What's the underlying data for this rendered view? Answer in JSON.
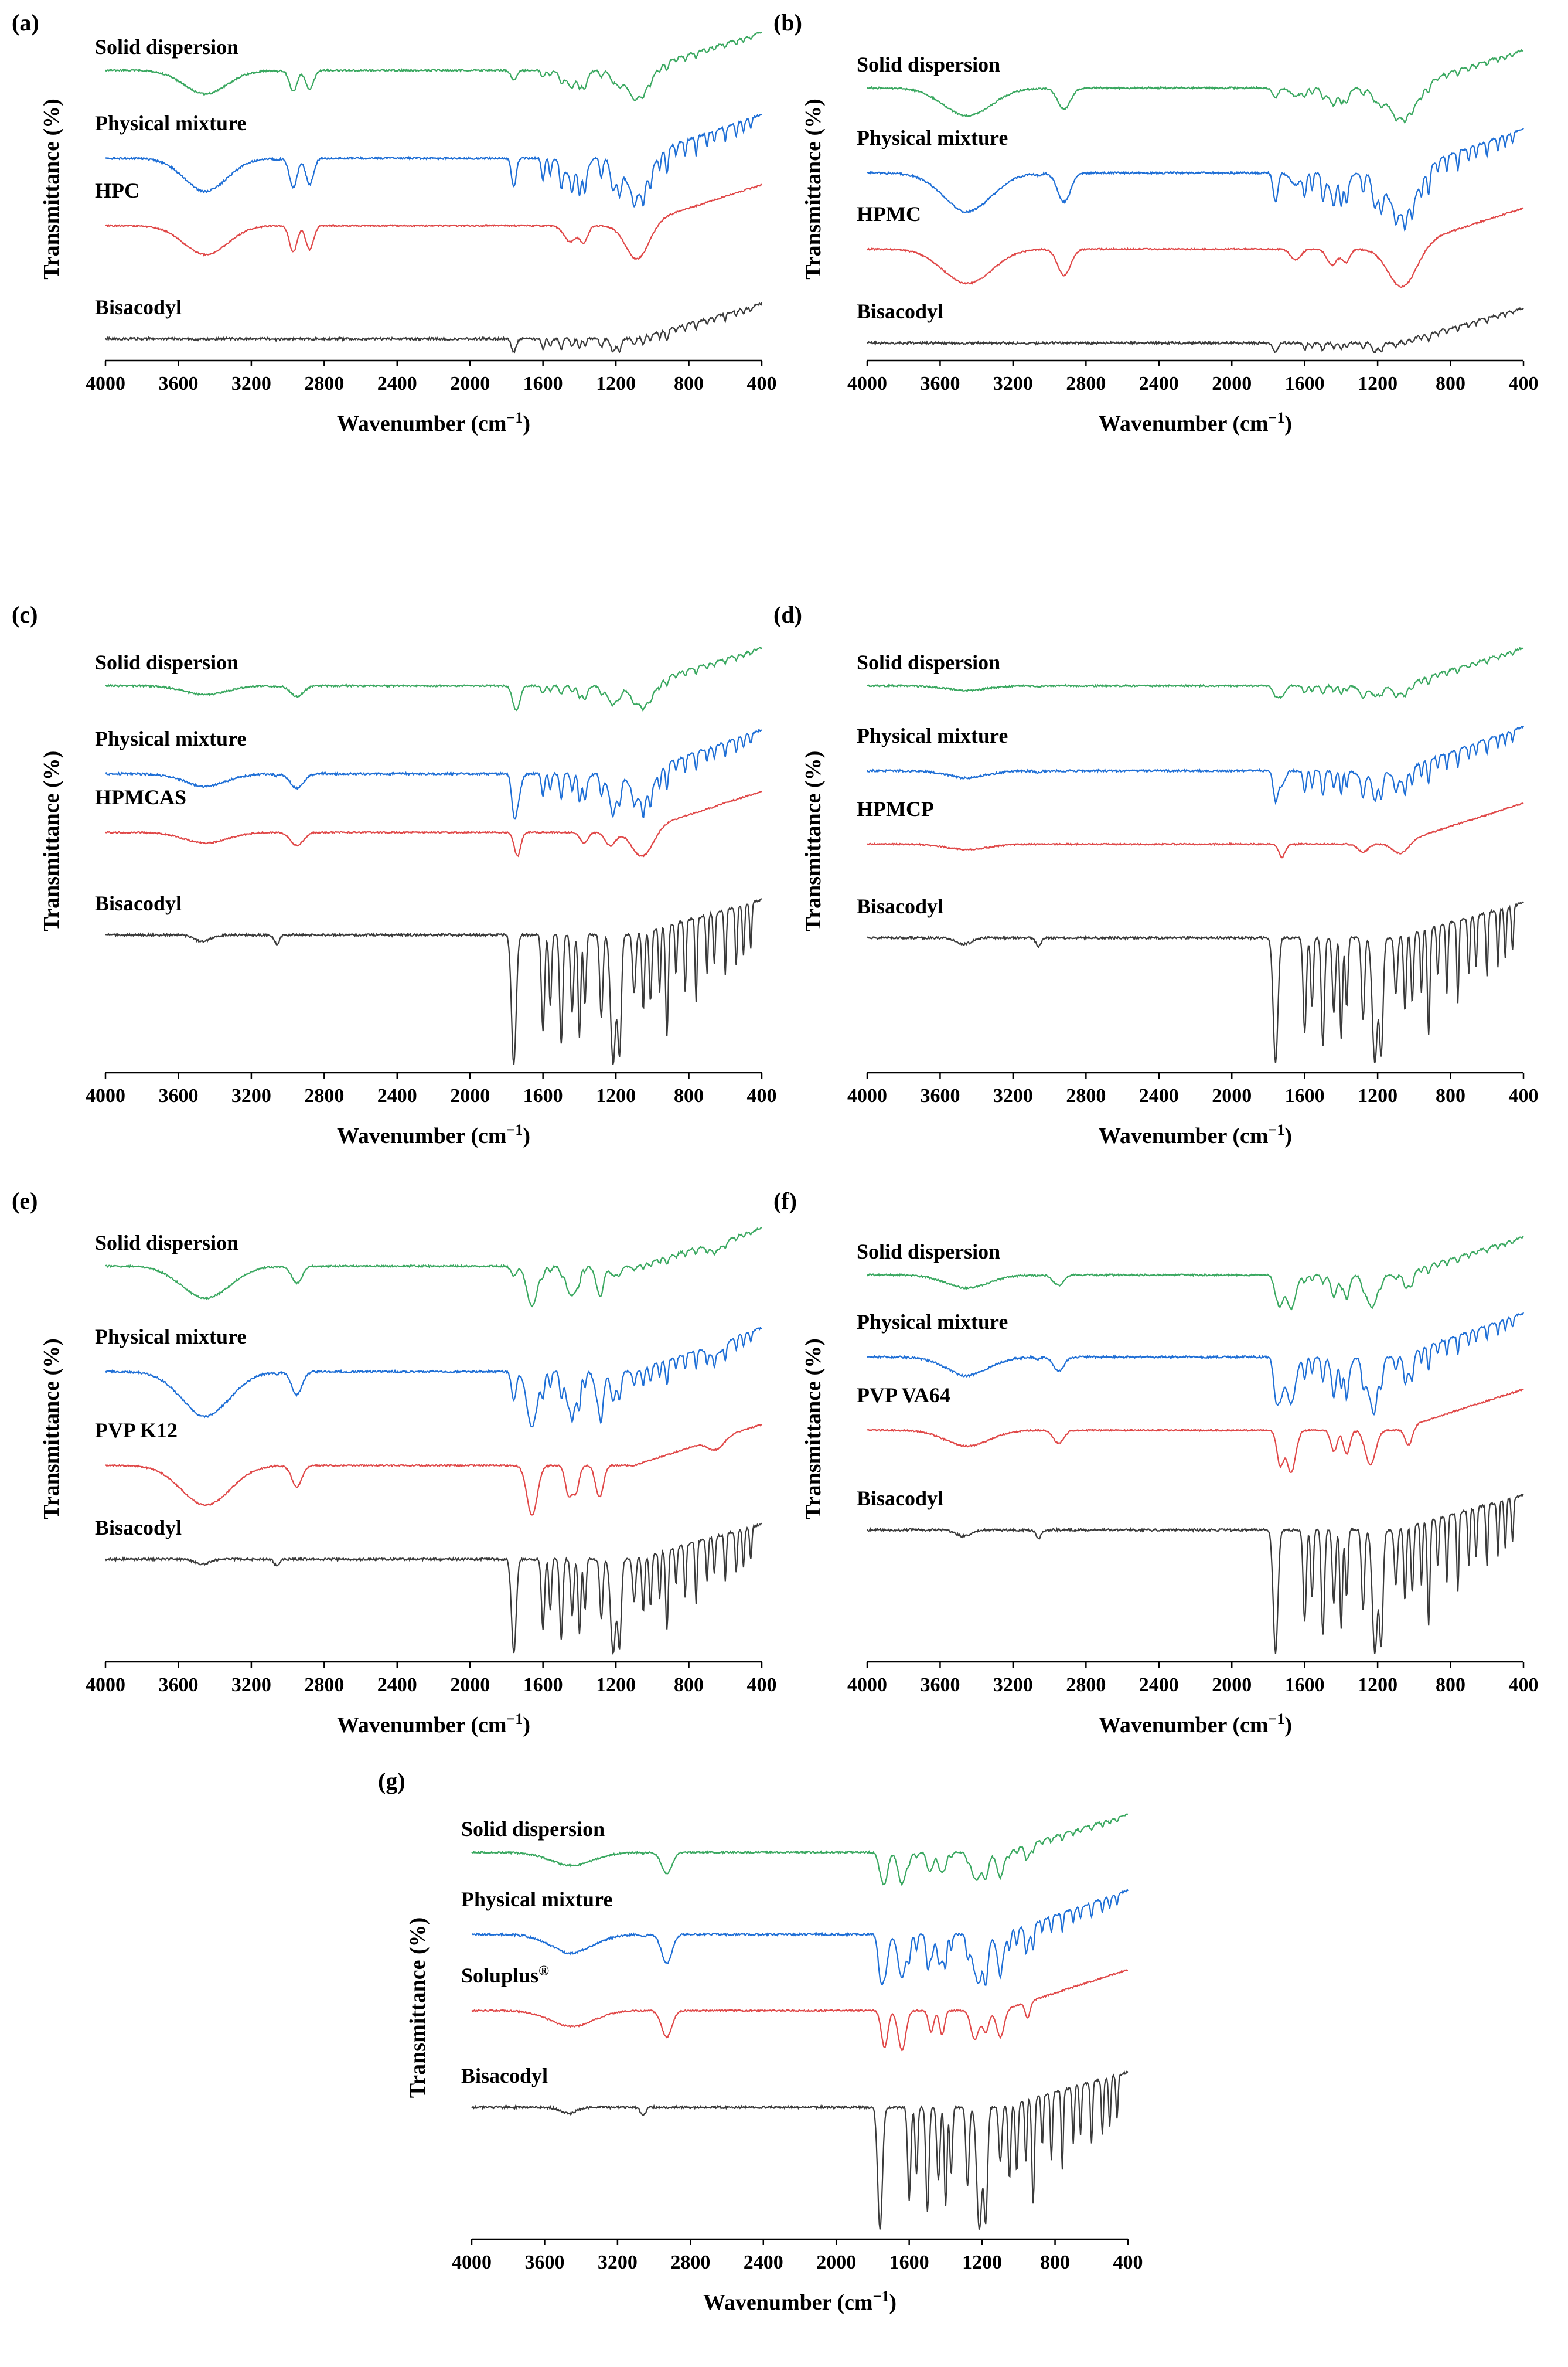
{
  "colors": {
    "solid_dispersion": "#3aa860",
    "physical_mixture": "#1f6fd6",
    "polymer": "#e04848",
    "bisacodyl": "#3a3a3a",
    "axis": "#000000"
  },
  "chart_data": [
    {
      "panel": "(a)",
      "type": "line",
      "polymer": "HPC",
      "xlabel": "Wavenumber (cm",
      "xlabel_sup": "−1",
      "xlabel_end": ")",
      "ylabel": "Transmittance (%)",
      "xlim": [
        4000,
        400
      ],
      "xticks": [
        "4000",
        "3600",
        "3200",
        "2800",
        "2400",
        "2000",
        "1600",
        "1200",
        "800",
        "400"
      ],
      "series": [
        {
          "name": "Solid dispersion",
          "role": "solid_dispersion"
        },
        {
          "name": "Physical mixture",
          "role": "physical_mixture"
        },
        {
          "name": "HPC",
          "role": "polymer"
        },
        {
          "name": "Bisacodyl",
          "role": "bisacodyl"
        }
      ]
    },
    {
      "panel": "(b)",
      "type": "line",
      "polymer": "HPMC",
      "xlabel": "Wavenumber (cm",
      "xlabel_sup": "−1",
      "xlabel_end": ")",
      "ylabel": "Transmittance (%)",
      "xlim": [
        4000,
        400
      ],
      "xticks": [
        "4000",
        "3600",
        "3200",
        "2800",
        "2400",
        "2000",
        "1600",
        "1200",
        "800",
        "400"
      ],
      "series": [
        {
          "name": "Solid dispersion",
          "role": "solid_dispersion"
        },
        {
          "name": "Physical mixture",
          "role": "physical_mixture"
        },
        {
          "name": "HPMC",
          "role": "polymer"
        },
        {
          "name": "Bisacodyl",
          "role": "bisacodyl"
        }
      ]
    },
    {
      "panel": "(c)",
      "type": "line",
      "polymer": "HPMCAS",
      "xlabel": "Wavenumber (cm",
      "xlabel_sup": "−1",
      "xlabel_end": ")",
      "ylabel": "Transmittance (%)",
      "xlim": [
        4000,
        400
      ],
      "xticks": [
        "4000",
        "3600",
        "3200",
        "2800",
        "2400",
        "2000",
        "1600",
        "1200",
        "800",
        "400"
      ],
      "series": [
        {
          "name": "Solid dispersion",
          "role": "solid_dispersion"
        },
        {
          "name": "Physical mixture",
          "role": "physical_mixture"
        },
        {
          "name": "HPMCAS",
          "role": "polymer"
        },
        {
          "name": "Bisacodyl",
          "role": "bisacodyl"
        }
      ]
    },
    {
      "panel": "(d)",
      "type": "line",
      "polymer": "HPMCP",
      "xlabel": "Wavenumber (cm",
      "xlabel_sup": "−1",
      "xlabel_end": ")",
      "ylabel": "Transmittance (%)",
      "xlim": [
        4000,
        400
      ],
      "xticks": [
        "4000",
        "3600",
        "3200",
        "2800",
        "2400",
        "2000",
        "1600",
        "1200",
        "800",
        "400"
      ],
      "series": [
        {
          "name": "Solid dispersion",
          "role": "solid_dispersion"
        },
        {
          "name": "Physical mixture",
          "role": "physical_mixture"
        },
        {
          "name": "HPMCP",
          "role": "polymer"
        },
        {
          "name": "Bisacodyl",
          "role": "bisacodyl"
        }
      ]
    },
    {
      "panel": "(e)",
      "type": "line",
      "polymer": "PVP K12",
      "xlabel": "Wavenumber (cm",
      "xlabel_sup": "−1",
      "xlabel_end": ")",
      "ylabel": "Transmittance (%)",
      "xlim": [
        4000,
        400
      ],
      "xticks": [
        "4000",
        "3600",
        "3200",
        "2800",
        "2400",
        "2000",
        "1600",
        "1200",
        "800",
        "400"
      ],
      "series": [
        {
          "name": "Solid dispersion",
          "role": "solid_dispersion"
        },
        {
          "name": "Physical mixture",
          "role": "physical_mixture"
        },
        {
          "name": "PVP K12",
          "role": "polymer"
        },
        {
          "name": "Bisacodyl",
          "role": "bisacodyl"
        }
      ]
    },
    {
      "panel": "(f)",
      "type": "line",
      "polymer": "PVP VA64",
      "xlabel": "Wavenumber (cm",
      "xlabel_sup": "−1",
      "xlabel_end": ")",
      "ylabel": "Transmittance (%)",
      "xlim": [
        4000,
        400
      ],
      "xticks": [
        "4000",
        "3600",
        "3200",
        "2800",
        "2400",
        "2000",
        "1600",
        "1200",
        "800",
        "400"
      ],
      "series": [
        {
          "name": "Solid dispersion",
          "role": "solid_dispersion"
        },
        {
          "name": "Physical mixture",
          "role": "physical_mixture"
        },
        {
          "name": "PVP VA64",
          "role": "polymer"
        },
        {
          "name": "Bisacodyl",
          "role": "bisacodyl"
        }
      ]
    },
    {
      "panel": "(g)",
      "type": "line",
      "polymer": "Soluplus",
      "polymer_sup": "®",
      "xlabel": "Wavenumber (cm",
      "xlabel_sup": "−1",
      "xlabel_end": ")",
      "ylabel": "Transmittance (%)",
      "xlim": [
        4000,
        400
      ],
      "xticks": [
        "4000",
        "3600",
        "3200",
        "2800",
        "2400",
        "2000",
        "1600",
        "1200",
        "800",
        "400"
      ],
      "series": [
        {
          "name": "Solid dispersion",
          "role": "solid_dispersion"
        },
        {
          "name": "Physical mixture",
          "role": "physical_mixture"
        },
        {
          "name": "Soluplus",
          "sup": "®",
          "role": "polymer"
        },
        {
          "name": "Bisacodyl",
          "role": "bisacodyl"
        }
      ]
    }
  ]
}
